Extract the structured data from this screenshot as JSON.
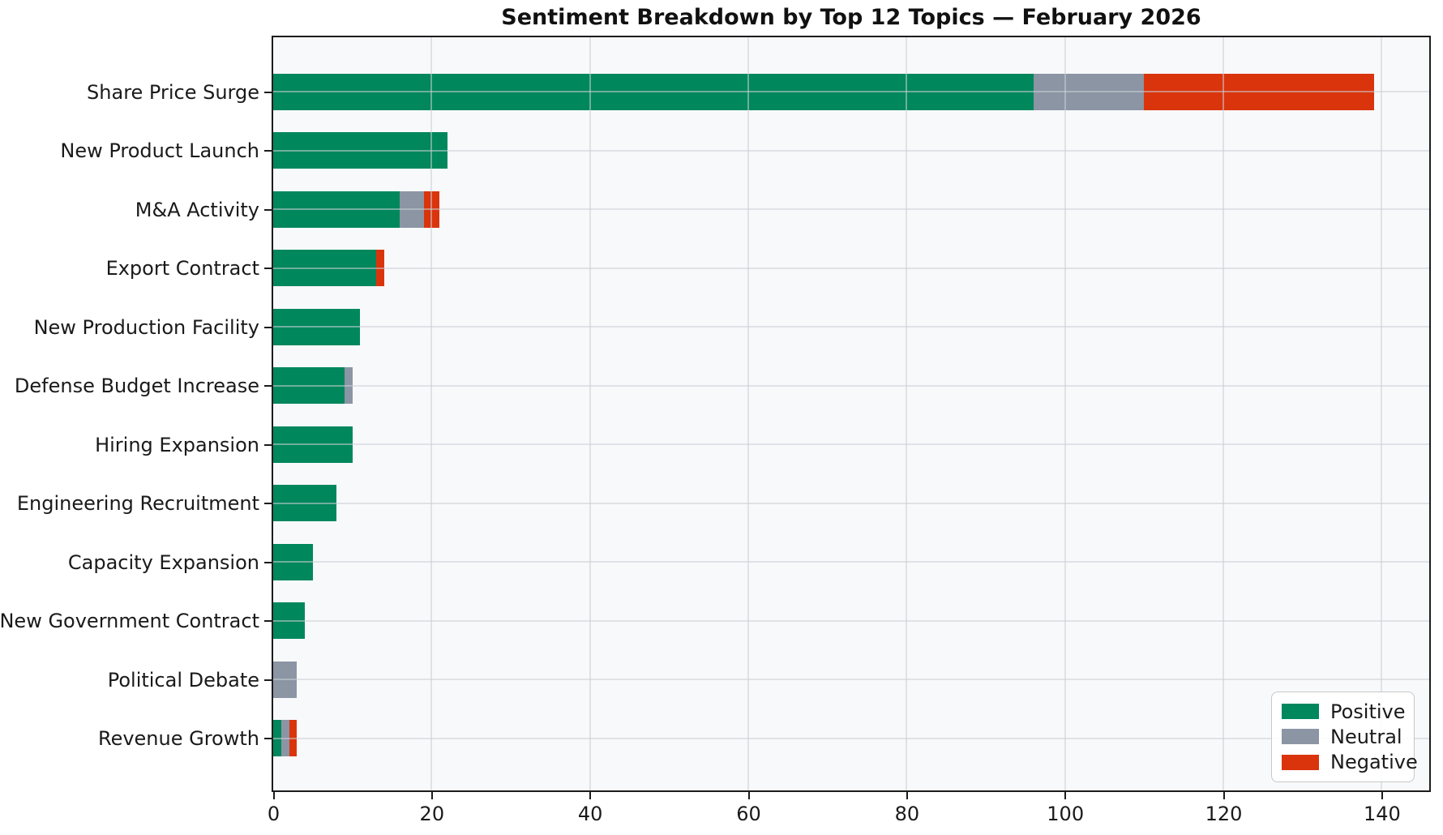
{
  "title": "Sentiment Breakdown by Top 12 Topics — February 2026",
  "colors": {
    "positive": "#00875c",
    "neutral": "#8b95a4",
    "negative": "#da340d",
    "plot_background": "#f8f9fb",
    "spine": "#1c1c1c"
  },
  "chart_data": {
    "type": "bar",
    "orientation": "horizontal",
    "stacked": true,
    "title": "Sentiment Breakdown by Top 12 Topics — February 2026",
    "categories": [
      "Share Price Surge",
      "New Product Launch",
      "M&A Activity",
      "Export Contract",
      "New Production Facility",
      "Defense Budget Increase",
      "Hiring Expansion",
      "Engineering Recruitment",
      "Capacity Expansion",
      "New Government Contract",
      "Political Debate",
      "Revenue Growth"
    ],
    "series": [
      {
        "name": "Positive",
        "color": "#00875c",
        "values": [
          96,
          22,
          16,
          13,
          11,
          9,
          10,
          8,
          5,
          4,
          0,
          1
        ]
      },
      {
        "name": "Neutral",
        "color": "#8b95a4",
        "values": [
          14,
          0,
          3,
          0,
          0,
          1,
          0,
          0,
          0,
          0,
          3,
          1
        ]
      },
      {
        "name": "Negative",
        "color": "#da340d",
        "values": [
          29,
          0,
          2,
          1,
          0,
          0,
          0,
          0,
          0,
          0,
          0,
          1
        ]
      }
    ],
    "totals": [
      139,
      22,
      21,
      14,
      11,
      10,
      10,
      8,
      5,
      4,
      3,
      3
    ],
    "xlabel": "",
    "ylabel": "",
    "x_ticks": [
      0,
      20,
      40,
      60,
      80,
      100,
      120,
      140
    ],
    "xlim": [
      0,
      145.9
    ],
    "grid": true,
    "legend": {
      "position": "lower right",
      "entries": [
        "Positive",
        "Neutral",
        "Negative"
      ]
    }
  }
}
